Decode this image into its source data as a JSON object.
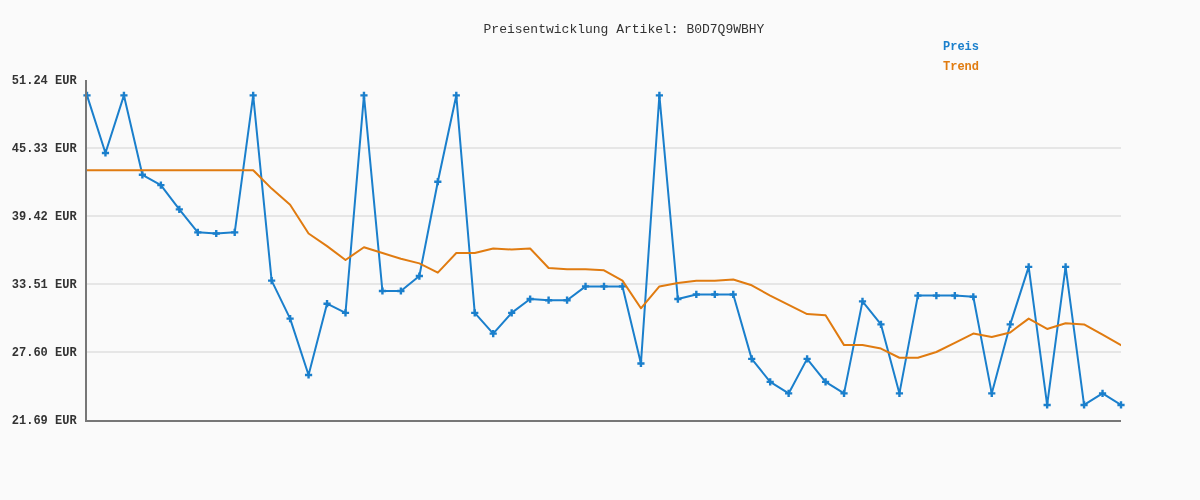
{
  "chart_data": {
    "type": "line",
    "title": "Preisentwicklung Artikel: B0D7Q9WBHY",
    "categories": [
      null,
      null,
      null,
      null,
      null,
      null,
      null,
      null,
      null,
      null,
      null,
      null,
      null,
      null,
      null,
      null,
      null,
      null,
      null,
      null,
      null,
      null,
      null,
      null,
      null,
      null,
      null,
      null,
      null,
      null,
      null,
      null,
      null,
      null,
      null,
      null,
      null,
      null,
      null,
      null,
      null,
      null,
      null,
      null,
      null,
      null,
      null,
      null,
      null,
      null,
      null,
      null,
      null,
      null,
      null,
      null,
      null
    ],
    "series": [
      {
        "name": "Preis",
        "color": "#1a7fcc",
        "marker": "cross",
        "values": [
          49.9,
          44.9,
          49.9,
          43.0,
          42.1,
          40.0,
          38.0,
          37.9,
          38.0,
          49.9,
          33.8,
          30.5,
          25.6,
          31.8,
          31.0,
          49.9,
          32.9,
          32.9,
          34.2,
          42.4,
          49.9,
          31.0,
          29.2,
          31.0,
          32.2,
          32.1,
          32.1,
          33.3,
          33.3,
          33.3,
          26.6,
          49.9,
          32.2,
          32.6,
          32.6,
          32.6,
          27.0,
          25.0,
          24.0,
          27.0,
          25.0,
          24.0,
          32.0,
          30.0,
          24.0,
          32.5,
          32.5,
          32.5,
          32.4,
          24.0,
          30.0,
          35.0,
          23.0,
          35.0,
          23.0,
          24.0,
          23.0
        ]
      },
      {
        "name": "Trend",
        "color": "#e07b10",
        "marker": "none",
        "values": [
          43.4,
          43.4,
          43.4,
          43.4,
          43.4,
          43.4,
          43.4,
          43.4,
          43.4,
          43.4,
          41.8,
          40.4,
          37.9,
          36.8,
          35.6,
          36.7,
          36.2,
          35.7,
          35.3,
          34.5,
          36.2,
          36.2,
          36.6,
          36.5,
          36.6,
          34.9,
          34.8,
          34.8,
          34.7,
          33.8,
          31.4,
          33.3,
          33.6,
          33.8,
          33.8,
          33.9,
          33.4,
          32.5,
          31.7,
          30.9,
          30.8,
          28.2,
          28.2,
          27.9,
          27.1,
          27.1,
          27.6,
          28.4,
          29.2,
          28.9,
          29.3,
          30.5,
          29.6,
          30.1,
          30.0,
          29.1,
          28.2
        ]
      }
    ],
    "ylim": [
      21.69,
      51.24
    ],
    "yticks": [
      {
        "value": 21.69,
        "label": "21.69 EUR"
      },
      {
        "value": 27.6,
        "label": "27.60 EUR"
      },
      {
        "value": 33.51,
        "label": "33.51 EUR"
      },
      {
        "value": 39.42,
        "label": "39.42 EUR"
      },
      {
        "value": 45.33,
        "label": "45.33 EUR"
      },
      {
        "value": 51.24,
        "label": "51.24 EUR"
      }
    ],
    "grid": "y",
    "legend": "top right",
    "tick_labels": "y",
    "line_style": "solid"
  }
}
